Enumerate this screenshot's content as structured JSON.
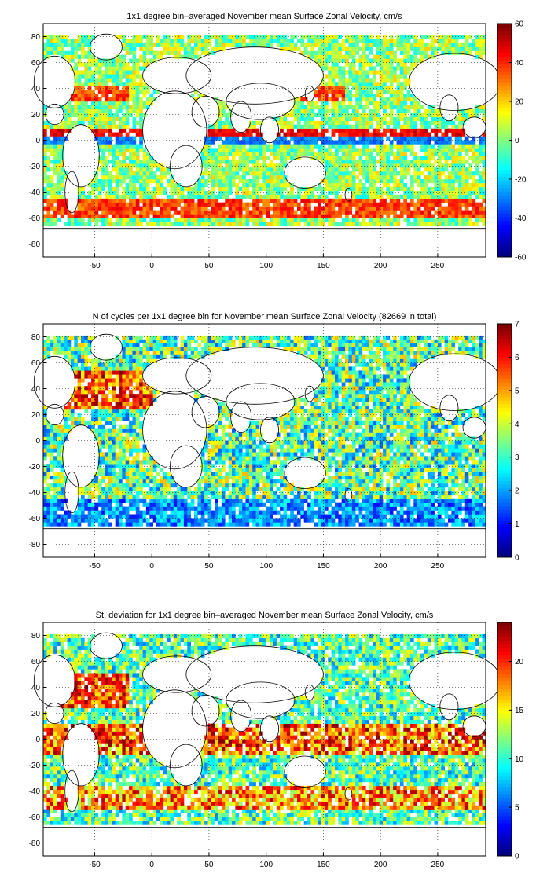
{
  "chart_data": [
    {
      "type": "heatmap",
      "title": "1x1 degree bin–averaged November mean Surface Zonal Velocity, cm/s",
      "xlabel": "",
      "ylabel": "",
      "xlim": [
        -95,
        292
      ],
      "ylim": [
        -90,
        90
      ],
      "xticks": [
        -50,
        0,
        50,
        100,
        150,
        200,
        250
      ],
      "yticks": [
        80,
        60,
        40,
        20,
        0,
        -20,
        -40,
        -60,
        -80
      ],
      "grid": true,
      "colormap": "jet",
      "colorbar": {
        "min": -60,
        "max": 60,
        "ticks": [
          60,
          40,
          20,
          0,
          -20,
          -40,
          -60
        ]
      }
    },
    {
      "type": "heatmap",
      "title": "N of cycles per 1x1 degree bin for November mean Surface Zonal Velocity (82669 in total)",
      "xlabel": "",
      "ylabel": "",
      "xlim": [
        -95,
        292
      ],
      "ylim": [
        -90,
        90
      ],
      "xticks": [
        -50,
        0,
        50,
        100,
        150,
        200,
        250
      ],
      "yticks": [
        80,
        60,
        40,
        20,
        0,
        -20,
        -40,
        -60,
        -80
      ],
      "grid": true,
      "colormap": "jet",
      "colorbar": {
        "min": 0,
        "max": 7,
        "ticks": [
          7,
          6,
          5,
          4,
          3,
          2,
          1,
          0
        ]
      }
    },
    {
      "type": "heatmap",
      "title": "St. deviation for 1x1 degree bin–averaged November mean Surface Zonal Velocity, cm/s",
      "xlabel": "",
      "ylabel": "",
      "xlim": [
        -95,
        292
      ],
      "ylim": [
        -90,
        90
      ],
      "xticks": [
        -50,
        0,
        50,
        100,
        150,
        200,
        250
      ],
      "yticks": [
        80,
        60,
        40,
        20,
        0,
        -20,
        -40,
        -60,
        -80
      ],
      "grid": true,
      "colormap": "jet",
      "colorbar": {
        "min": 0,
        "max": 24,
        "ticks": [
          20,
          15,
          10,
          5,
          0
        ]
      }
    }
  ]
}
